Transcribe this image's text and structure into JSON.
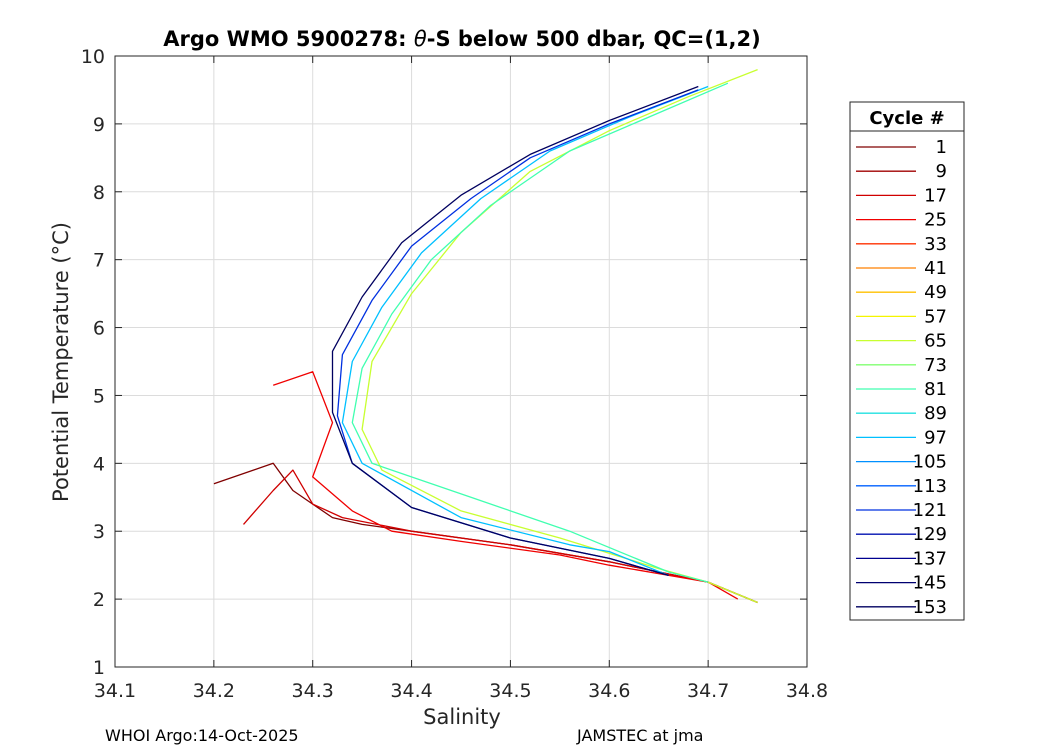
{
  "chart_data": {
    "type": "line",
    "title_prefix": "Argo WMO 5900278: ",
    "title_theta": "θ",
    "title_suffix": "-S below 500 dbar,  QC=(1,2)",
    "xlabel": "Salinity",
    "ylabel": "Potential Temperature (°C)",
    "xlim": [
      34.1,
      34.8
    ],
    "ylim": [
      1,
      10
    ],
    "xticks": [
      "34.1",
      "34.2",
      "34.3",
      "34.4",
      "34.5",
      "34.6",
      "34.7",
      "34.8"
    ],
    "yticks": [
      "1",
      "2",
      "3",
      "4",
      "5",
      "6",
      "7",
      "8",
      "9",
      "10"
    ],
    "grid": true,
    "legend": {
      "title": "Cycle #",
      "placement": "outside-right",
      "entries": [
        "1",
        "9",
        "17",
        "25",
        "33",
        "41",
        "49",
        "57",
        "65",
        "73",
        "81",
        "89",
        "97",
        "105",
        "113",
        "121",
        "129",
        "137",
        "145",
        "153"
      ],
      "colors": [
        "#800000",
        "#a00000",
        "#d00000",
        "#f00000",
        "#ff3000",
        "#ff8000",
        "#ffc000",
        "#f5f500",
        "#c8ff30",
        "#80ff70",
        "#40ffb0",
        "#20e0e0",
        "#00c0ff",
        "#0090ff",
        "#0060ff",
        "#0030e0",
        "#0010b0",
        "#000090",
        "#000070",
        "#000060"
      ]
    },
    "series": [
      {
        "name": "1",
        "color": "#800000",
        "salinity": [
          34.2,
          34.24,
          34.26,
          34.28,
          34.3,
          34.32,
          34.35,
          34.4,
          34.5,
          34.6,
          34.7,
          34.75
        ],
        "theta": [
          3.7,
          3.9,
          4.0,
          3.6,
          3.4,
          3.2,
          3.1,
          3.0,
          2.8,
          2.55,
          2.25,
          1.95
        ]
      },
      {
        "name": "17",
        "color": "#d00000",
        "salinity": [
          34.23,
          34.26,
          34.28,
          34.3,
          34.33,
          34.4,
          34.5,
          34.6,
          34.7,
          34.75
        ],
        "theta": [
          3.1,
          3.6,
          3.9,
          3.4,
          3.2,
          3.0,
          2.8,
          2.55,
          2.25,
          1.95
        ]
      },
      {
        "name": "25",
        "color": "#f00000",
        "salinity": [
          34.26,
          34.3,
          34.32,
          34.3,
          34.34,
          34.38,
          34.45,
          34.55,
          34.6,
          34.7,
          34.73
        ],
        "theta": [
          5.15,
          5.35,
          4.6,
          3.8,
          3.3,
          3.0,
          2.85,
          2.65,
          2.5,
          2.25,
          2.0
        ]
      },
      {
        "name": "65",
        "color": "#c8ff30",
        "salinity": [
          34.75,
          34.68,
          34.6,
          34.52,
          34.45,
          34.4,
          34.36,
          34.35,
          34.37,
          34.45,
          34.55,
          34.65,
          34.7,
          34.75
        ],
        "theta": [
          9.8,
          9.4,
          8.9,
          8.3,
          7.4,
          6.5,
          5.5,
          4.5,
          3.9,
          3.3,
          2.9,
          2.45,
          2.25,
          1.95
        ]
      },
      {
        "name": "81",
        "color": "#40ffb0",
        "salinity": [
          34.72,
          34.64,
          34.56,
          34.48,
          34.42,
          34.38,
          34.35,
          34.34,
          34.36,
          34.46,
          34.56,
          34.66,
          34.7
        ],
        "theta": [
          9.6,
          9.1,
          8.6,
          7.8,
          7.0,
          6.2,
          5.4,
          4.6,
          4.0,
          3.5,
          3.0,
          2.4,
          2.25
        ]
      },
      {
        "name": "97",
        "color": "#00c0ff",
        "salinity": [
          34.7,
          34.62,
          34.54,
          34.47,
          34.41,
          34.37,
          34.34,
          34.33,
          34.35,
          34.45,
          34.56,
          34.6,
          34.66
        ],
        "theta": [
          9.55,
          9.1,
          8.6,
          7.9,
          7.1,
          6.3,
          5.5,
          4.6,
          4.0,
          3.2,
          2.8,
          2.7,
          2.35
        ]
      },
      {
        "name": "121",
        "color": "#0030e0",
        "salinity": [
          34.69,
          34.6,
          34.52,
          34.46,
          34.4,
          34.36,
          34.33,
          34.325,
          34.34,
          34.4,
          34.5,
          34.6,
          34.66
        ],
        "theta": [
          9.5,
          9.0,
          8.5,
          7.9,
          7.2,
          6.4,
          5.6,
          4.7,
          4.0,
          3.35,
          2.9,
          2.6,
          2.35
        ]
      },
      {
        "name": "153",
        "color": "#000060",
        "salinity": [
          34.69,
          34.6,
          34.52,
          34.45,
          34.39,
          34.35,
          34.32,
          34.32,
          34.34,
          34.4,
          34.5,
          34.6,
          34.66
        ],
        "theta": [
          9.55,
          9.05,
          8.55,
          7.95,
          7.25,
          6.45,
          5.65,
          4.75,
          4.0,
          3.35,
          2.9,
          2.6,
          2.35
        ]
      }
    ]
  },
  "footer": {
    "left": "WHOI Argo:14-Oct-2025",
    "right": "JAMSTEC at jma"
  }
}
